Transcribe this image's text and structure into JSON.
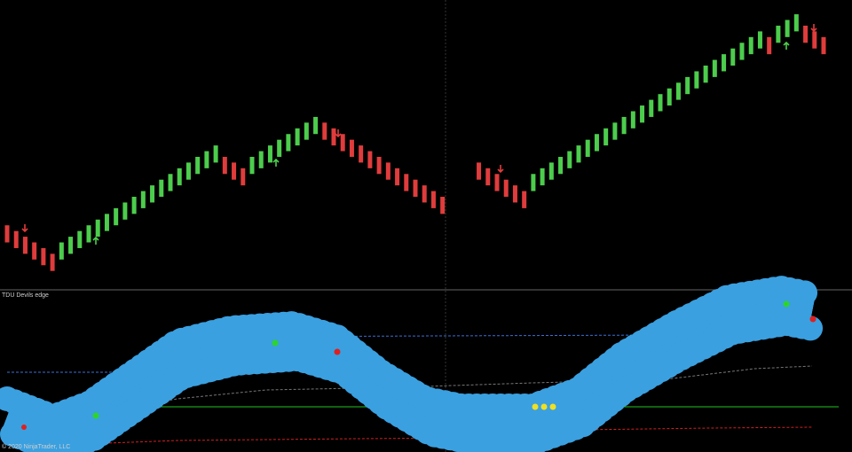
{
  "chart_data": {
    "type": "candlestick",
    "open": [
      12,
      11,
      10,
      9,
      8,
      7,
      6,
      7,
      8,
      9,
      10,
      11,
      12,
      13,
      14,
      15,
      16,
      17,
      18,
      19,
      20,
      21,
      22,
      23,
      24,
      23,
      22,
      21,
      22,
      23,
      24,
      25,
      26,
      27,
      28,
      30,
      29,
      28,
      27,
      26,
      25,
      24,
      23,
      22,
      21,
      20,
      19,
      18,
      17,
      null,
      null,
      null,
      23,
      22,
      21,
      20,
      19,
      18,
      18,
      19,
      20,
      21,
      22,
      23,
      24,
      25,
      26,
      27,
      28,
      29,
      30,
      31,
      32,
      33,
      34,
      35,
      36,
      37,
      38,
      39,
      40,
      41,
      42,
      43,
      45,
      44,
      45,
      46,
      47,
      46,
      45
    ],
    "close": [
      9,
      8,
      7,
      6,
      5,
      4,
      9,
      10,
      11,
      12,
      13,
      14,
      15,
      16,
      17,
      18,
      19,
      20,
      21,
      22,
      23,
      24,
      25,
      26,
      21,
      20,
      19,
      24,
      25,
      26,
      27,
      28,
      29,
      30,
      31,
      27,
      26,
      25,
      24,
      23,
      22,
      21,
      20,
      19,
      18,
      17,
      16,
      15,
      14,
      null,
      null,
      null,
      20,
      19,
      18,
      17,
      16,
      15,
      21,
      22,
      23,
      24,
      25,
      26,
      27,
      28,
      29,
      30,
      31,
      32,
      33,
      34,
      35,
      36,
      37,
      38,
      39,
      40,
      41,
      42,
      43,
      44,
      45,
      46,
      42,
      47,
      48,
      49,
      44,
      43,
      42
    ],
    "ylim": [
      1,
      51.5
    ],
    "up_color": "#4ccd4c",
    "down_color": "#e03c3c"
  },
  "indicator": {
    "label": "TDU Devils edge"
  },
  "footer": {
    "copyright": "© 2020 NinjaTrader, LLC"
  }
}
